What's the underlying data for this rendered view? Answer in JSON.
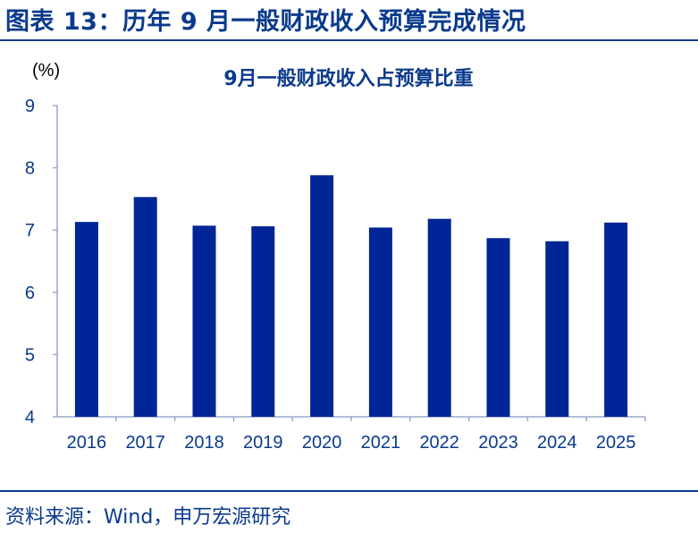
{
  "figure": {
    "title": "图表 13：历年 9 月一般财政收入预算完成情况",
    "source": "资料来源：Wind，申万宏源研究"
  },
  "colors": {
    "bar": "#002596",
    "text": "#0a3a8c",
    "axis": "#9aa7c8"
  },
  "chart_data": {
    "type": "bar",
    "title": "9月一般财政收入占预算比重",
    "ylabel": "(%)",
    "xlabel": "",
    "categories": [
      "2016",
      "2017",
      "2018",
      "2019",
      "2020",
      "2021",
      "2022",
      "2023",
      "2024",
      "2025"
    ],
    "values": [
      7.13,
      7.53,
      7.07,
      7.06,
      7.88,
      7.04,
      7.18,
      6.87,
      6.82,
      7.12
    ],
    "ylim": [
      4,
      9
    ],
    "yticks": [
      "4",
      "5",
      "6",
      "7",
      "8",
      "9"
    ],
    "grid": false,
    "legend": "none"
  }
}
